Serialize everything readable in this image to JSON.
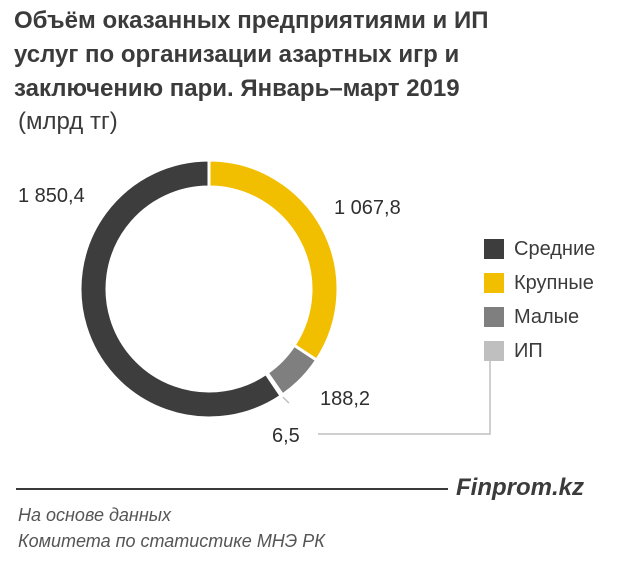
{
  "title_lines": [
    "Объём оказанных предприятиями и ИП",
    "услуг по организации  азартных игр и",
    "заключению пари. Январь–март 2019"
  ],
  "subtitle": "(млрд тг)",
  "brand": "Finprom.kz",
  "source_lines": [
    "На основе данных",
    "Комитета по статистике МНЭ РК"
  ],
  "colors": {
    "Средние": "#3d3d3d",
    "Крупные": "#f2bf00",
    "Малые": "#7f7f7f",
    "ИП": "#bfbfbf"
  },
  "chart_data": {
    "type": "pie",
    "variant": "donut",
    "categories": [
      "Средние",
      "Крупные",
      "Малые",
      "ИП"
    ],
    "values": [
      1850.4,
      1067.8,
      188.2,
      6.5
    ],
    "value_labels": [
      "1 850,4",
      "1 067,8",
      "188,2",
      "6,5"
    ],
    "legend": [
      "Средние",
      "Крупные",
      "Малые",
      "ИП"
    ],
    "legend_position": "right"
  }
}
